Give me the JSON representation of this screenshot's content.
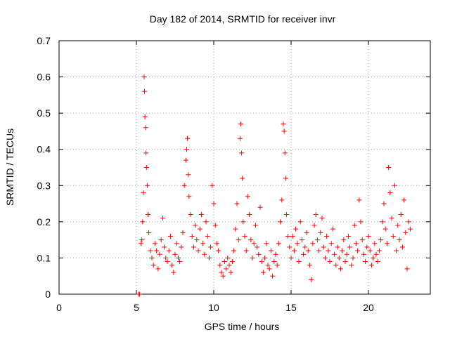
{
  "chart_data": {
    "type": "scatter",
    "title": "Day 182 of 2014, SRMTID for receiver invr",
    "xlabel": "GPS time / hours",
    "ylabel": "SRMTID / TECUs",
    "xlim": [
      0,
      24
    ],
    "ylim": [
      0,
      0.7
    ],
    "xticks": [
      "0",
      "5",
      "10",
      "15",
      "20"
    ],
    "xtick_values": [
      0,
      5,
      10,
      15,
      20
    ],
    "yticks": [
      "0",
      "0.1",
      "0.2",
      "0.3",
      "0.4",
      "0.5",
      "0.6",
      "0.7"
    ],
    "ytick_values": [
      0,
      0.1,
      0.2,
      0.3,
      0.4,
      0.5,
      0.6,
      0.7
    ],
    "grid": true,
    "marker": "+",
    "color": "#ff0000",
    "series": [
      {
        "name": "SRMTID",
        "points": [
          [
            5.15,
            0.0
          ],
          [
            5.2,
            0.0
          ],
          [
            5.3,
            0.14
          ],
          [
            5.35,
            0.15
          ],
          [
            5.4,
            0.2
          ],
          [
            5.45,
            0.28
          ],
          [
            5.5,
            0.6
          ],
          [
            5.52,
            0.56
          ],
          [
            5.55,
            0.49
          ],
          [
            5.6,
            0.46
          ],
          [
            5.62,
            0.39
          ],
          [
            5.65,
            0.35
          ],
          [
            5.7,
            0.3
          ],
          [
            5.75,
            0.22
          ],
          [
            5.8,
            0.17
          ],
          [
            5.9,
            0.12
          ],
          [
            6.0,
            0.1
          ],
          [
            6.1,
            0.08
          ],
          [
            6.2,
            0.14
          ],
          [
            6.3,
            0.12
          ],
          [
            6.4,
            0.07
          ],
          [
            6.5,
            0.11
          ],
          [
            6.6,
            0.15
          ],
          [
            6.7,
            0.21
          ],
          [
            6.8,
            0.13
          ],
          [
            6.9,
            0.1
          ],
          [
            7.0,
            0.09
          ],
          [
            7.1,
            0.12
          ],
          [
            7.2,
            0.16
          ],
          [
            7.3,
            0.08
          ],
          [
            7.4,
            0.06
          ],
          [
            7.5,
            0.11
          ],
          [
            7.6,
            0.14
          ],
          [
            7.7,
            0.1
          ],
          [
            7.8,
            0.09
          ],
          [
            7.9,
            0.13
          ],
          [
            8.0,
            0.17
          ],
          [
            8.1,
            0.3
          ],
          [
            8.2,
            0.37
          ],
          [
            8.25,
            0.4
          ],
          [
            8.3,
            0.43
          ],
          [
            8.35,
            0.33
          ],
          [
            8.4,
            0.27
          ],
          [
            8.5,
            0.22
          ],
          [
            8.6,
            0.16
          ],
          [
            8.7,
            0.13
          ],
          [
            8.8,
            0.19
          ],
          [
            8.9,
            0.15
          ],
          [
            9.0,
            0.12
          ],
          [
            9.1,
            0.18
          ],
          [
            9.2,
            0.22
          ],
          [
            9.3,
            0.14
          ],
          [
            9.4,
            0.11
          ],
          [
            9.5,
            0.2
          ],
          [
            9.6,
            0.16
          ],
          [
            9.7,
            0.1
          ],
          [
            9.8,
            0.13
          ],
          [
            9.9,
            0.3
          ],
          [
            10.0,
            0.25
          ],
          [
            10.1,
            0.19
          ],
          [
            10.2,
            0.14
          ],
          [
            10.3,
            0.12
          ],
          [
            10.4,
            0.08
          ],
          [
            10.5,
            0.06
          ],
          [
            10.6,
            0.05
          ],
          [
            10.7,
            0.09
          ],
          [
            10.8,
            0.07
          ],
          [
            10.9,
            0.1
          ],
          [
            11.0,
            0.08
          ],
          [
            11.1,
            0.06
          ],
          [
            11.2,
            0.09
          ],
          [
            11.3,
            0.12
          ],
          [
            11.4,
            0.18
          ],
          [
            11.5,
            0.25
          ],
          [
            11.6,
            0.15
          ],
          [
            11.7,
            0.43
          ],
          [
            11.75,
            0.47
          ],
          [
            11.8,
            0.39
          ],
          [
            11.85,
            0.32
          ],
          [
            11.9,
            0.2
          ],
          [
            12.0,
            0.16
          ],
          [
            12.1,
            0.12
          ],
          [
            12.2,
            0.27
          ],
          [
            12.3,
            0.22
          ],
          [
            12.4,
            0.15
          ],
          [
            12.5,
            0.1
          ],
          [
            12.6,
            0.14
          ],
          [
            12.7,
            0.19
          ],
          [
            12.8,
            0.13
          ],
          [
            12.9,
            0.11
          ],
          [
            13.0,
            0.24
          ],
          [
            13.1,
            0.09
          ],
          [
            13.2,
            0.06
          ],
          [
            13.3,
            0.1
          ],
          [
            13.4,
            0.14
          ],
          [
            13.5,
            0.08
          ],
          [
            13.6,
            0.07
          ],
          [
            13.7,
            0.12
          ],
          [
            13.8,
            0.05
          ],
          [
            13.9,
            0.09
          ],
          [
            14.0,
            0.11
          ],
          [
            14.1,
            0.08
          ],
          [
            14.2,
            0.14
          ],
          [
            14.3,
            0.2
          ],
          [
            14.4,
            0.26
          ],
          [
            14.5,
            0.47
          ],
          [
            14.55,
            0.45
          ],
          [
            14.6,
            0.39
          ],
          [
            14.65,
            0.32
          ],
          [
            14.7,
            0.22
          ],
          [
            14.8,
            0.16
          ],
          [
            14.9,
            0.13
          ],
          [
            15.0,
            0.1
          ],
          [
            15.1,
            0.16
          ],
          [
            15.2,
            0.12
          ],
          [
            15.3,
            0.18
          ],
          [
            15.4,
            0.14
          ],
          [
            15.5,
            0.09
          ],
          [
            15.6,
            0.2
          ],
          [
            15.7,
            0.15
          ],
          [
            15.8,
            0.11
          ],
          [
            15.9,
            0.13
          ],
          [
            16.0,
            0.17
          ],
          [
            16.1,
            0.12
          ],
          [
            16.2,
            0.08
          ],
          [
            16.3,
            0.04
          ],
          [
            16.4,
            0.14
          ],
          [
            16.5,
            0.19
          ],
          [
            16.6,
            0.22
          ],
          [
            16.7,
            0.15
          ],
          [
            16.8,
            0.12
          ],
          [
            16.9,
            0.17
          ],
          [
            17.0,
            0.21
          ],
          [
            17.1,
            0.13
          ],
          [
            17.2,
            0.1
          ],
          [
            17.3,
            0.16
          ],
          [
            17.4,
            0.12
          ],
          [
            17.5,
            0.09
          ],
          [
            17.6,
            0.14
          ],
          [
            17.7,
            0.18
          ],
          [
            17.8,
            0.11
          ],
          [
            17.9,
            0.08
          ],
          [
            18.0,
            0.13
          ],
          [
            18.1,
            0.1
          ],
          [
            18.2,
            0.07
          ],
          [
            18.3,
            0.12
          ],
          [
            18.4,
            0.15
          ],
          [
            18.5,
            0.09
          ],
          [
            18.6,
            0.11
          ],
          [
            18.7,
            0.16
          ],
          [
            18.8,
            0.13
          ],
          [
            18.9,
            0.08
          ],
          [
            19.0,
            0.1
          ],
          [
            19.1,
            0.19
          ],
          [
            19.2,
            0.14
          ],
          [
            19.3,
            0.12
          ],
          [
            19.4,
            0.26
          ],
          [
            19.5,
            0.2
          ],
          [
            19.6,
            0.15
          ],
          [
            19.7,
            0.11
          ],
          [
            19.8,
            0.09
          ],
          [
            19.9,
            0.13
          ],
          [
            20.0,
            0.16
          ],
          [
            20.1,
            0.12
          ],
          [
            20.2,
            0.08
          ],
          [
            20.3,
            0.1
          ],
          [
            20.4,
            0.14
          ],
          [
            20.5,
            0.11
          ],
          [
            20.6,
            0.09
          ],
          [
            20.7,
            0.12
          ],
          [
            20.8,
            0.15
          ],
          [
            20.9,
            0.2
          ],
          [
            21.0,
            0.25
          ],
          [
            21.1,
            0.18
          ],
          [
            21.2,
            0.14
          ],
          [
            21.3,
            0.35
          ],
          [
            21.4,
            0.28
          ],
          [
            21.5,
            0.21
          ],
          [
            21.6,
            0.16
          ],
          [
            21.7,
            0.3
          ],
          [
            21.8,
            0.12
          ],
          [
            21.9,
            0.19
          ],
          [
            22.0,
            0.15
          ],
          [
            22.1,
            0.22
          ],
          [
            22.2,
            0.13
          ],
          [
            22.3,
            0.26
          ],
          [
            22.4,
            0.17
          ],
          [
            22.5,
            0.07
          ],
          [
            22.6,
            0.2
          ],
          [
            22.7,
            0.18
          ]
        ]
      }
    ]
  }
}
